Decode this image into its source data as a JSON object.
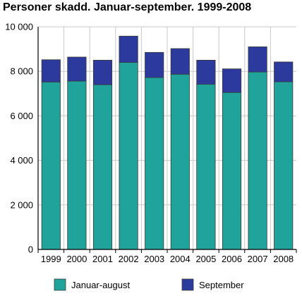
{
  "chart_data": {
    "type": "bar",
    "stacked": true,
    "title": "Personer skadd. Januar-september. 1999-2008",
    "xlabel": "",
    "ylabel": "",
    "categories": [
      "1999",
      "2000",
      "2001",
      "2002",
      "2003",
      "2004",
      "2005",
      "2006",
      "2007",
      "2008"
    ],
    "series": [
      {
        "name": "Januar-august",
        "color": "#1fa39a",
        "values": [
          7520,
          7560,
          7400,
          8400,
          7720,
          7870,
          7420,
          7050,
          7970,
          7530
        ]
      },
      {
        "name": "September",
        "color": "#2b3a9c",
        "values": [
          1000,
          1080,
          1100,
          1180,
          1130,
          1150,
          1080,
          1060,
          1130,
          890
        ]
      }
    ],
    "ylim": [
      0,
      10000
    ],
    "yticks": [
      {
        "value": 0,
        "label": "0"
      },
      {
        "value": 2000,
        "label": "2 000"
      },
      {
        "value": 4000,
        "label": "4 000"
      },
      {
        "value": 6000,
        "label": "6 000"
      },
      {
        "value": 8000,
        "label": "8 000"
      },
      {
        "value": 10000,
        "label": "10 000"
      }
    ],
    "grid": true,
    "legend_position": "bottom"
  }
}
